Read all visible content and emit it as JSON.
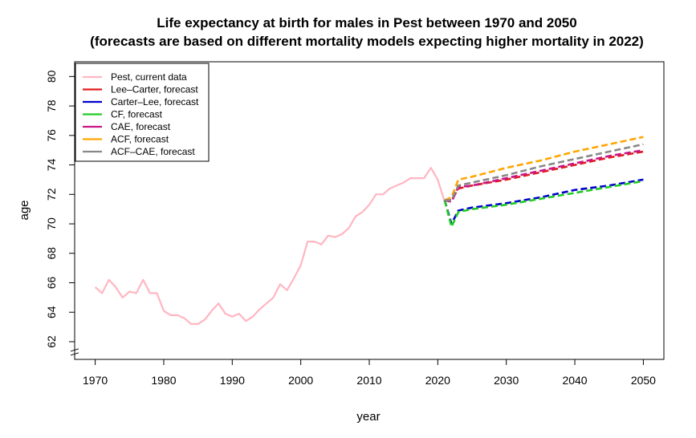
{
  "chart_data": {
    "type": "line",
    "title": "Life expectancy at birth for males in Pest between 1970 and 2050",
    "subtitle": "(forecasts are based on different mortality models expecting higher mortality in 2022)",
    "xlabel": "year",
    "ylabel": "age",
    "xlim": [
      1967,
      2053
    ],
    "ylim": [
      60.8,
      81.0
    ],
    "xticks": [
      1970,
      1980,
      1990,
      2000,
      2010,
      2020,
      2030,
      2040,
      2050
    ],
    "yticks": [
      62,
      64,
      66,
      68,
      70,
      72,
      74,
      76,
      78,
      80
    ],
    "axis_break": true,
    "grid": false,
    "legend_position": "top-left",
    "series": [
      {
        "name": "Pest, current data",
        "color": "#FFB6C1",
        "style": "solid",
        "x": [
          1970,
          1971,
          1972,
          1973,
          1974,
          1975,
          1976,
          1977,
          1978,
          1979,
          1980,
          1981,
          1982,
          1983,
          1984,
          1985,
          1986,
          1987,
          1988,
          1989,
          1990,
          1991,
          1992,
          1993,
          1994,
          1995,
          1996,
          1997,
          1998,
          1999,
          2000,
          2001,
          2002,
          2003,
          2004,
          2005,
          2006,
          2007,
          2008,
          2009,
          2010,
          2011,
          2012,
          2013,
          2014,
          2015,
          2016,
          2017,
          2018,
          2019,
          2020,
          2021
        ],
        "y": [
          65.7,
          65.3,
          66.2,
          65.7,
          65.0,
          65.4,
          65.3,
          66.2,
          65.3,
          65.3,
          64.1,
          63.8,
          63.8,
          63.6,
          63.2,
          63.2,
          63.5,
          64.1,
          64.6,
          63.9,
          63.7,
          63.9,
          63.4,
          63.7,
          64.2,
          64.6,
          65.0,
          65.9,
          65.5,
          66.3,
          67.2,
          68.8,
          68.8,
          68.6,
          69.2,
          69.1,
          69.3,
          69.7,
          70.5,
          70.8,
          71.3,
          72.0,
          72.0,
          72.4,
          72.6,
          72.8,
          73.1,
          73.1,
          73.1,
          73.8,
          73.0,
          71.5
        ]
      },
      {
        "name": "Lee–Carter, forecast",
        "color": "#E41A1C",
        "style": "dashed",
        "x": [
          2021,
          2022,
          2023,
          2025,
          2030,
          2035,
          2040,
          2045,
          2050
        ],
        "y": [
          71.6,
          71.6,
          72.4,
          72.6,
          73.0,
          73.5,
          74.0,
          74.5,
          74.9
        ]
      },
      {
        "name": "Carter–Lee, forecast",
        "color": "#0000CD",
        "style": "dashed",
        "x": [
          2021,
          2022,
          2023,
          2025,
          2030,
          2035,
          2040,
          2045,
          2050
        ],
        "y": [
          71.6,
          70.0,
          70.9,
          71.1,
          71.4,
          71.8,
          72.3,
          72.6,
          73.0
        ]
      },
      {
        "name": "CF, forecast",
        "color": "#22CC22",
        "style": "dashed",
        "x": [
          2021,
          2022,
          2023,
          2025,
          2030,
          2035,
          2040,
          2045,
          2050
        ],
        "y": [
          71.6,
          69.8,
          70.8,
          71.0,
          71.3,
          71.7,
          72.1,
          72.5,
          72.9
        ]
      },
      {
        "name": "CAE, forecast",
        "color": "#C71585",
        "style": "dashed",
        "x": [
          2021,
          2022,
          2023,
          2025,
          2030,
          2035,
          2040,
          2045,
          2050
        ],
        "y": [
          71.6,
          71.5,
          72.5,
          72.6,
          73.1,
          73.6,
          74.1,
          74.6,
          75.0
        ]
      },
      {
        "name": "ACF, forecast",
        "color": "#FFA500",
        "style": "dashed",
        "x": [
          2021,
          2022,
          2023,
          2025,
          2030,
          2035,
          2040,
          2045,
          2050
        ],
        "y": [
          71.6,
          71.8,
          73.0,
          73.2,
          73.8,
          74.3,
          74.9,
          75.4,
          75.9
        ]
      },
      {
        "name": "ACF–CAE, forecast",
        "color": "#888888",
        "style": "dashed",
        "x": [
          2021,
          2022,
          2023,
          2025,
          2030,
          2035,
          2040,
          2045,
          2050
        ],
        "y": [
          71.6,
          71.6,
          72.6,
          72.8,
          73.3,
          73.9,
          74.4,
          74.9,
          75.4
        ]
      }
    ]
  }
}
